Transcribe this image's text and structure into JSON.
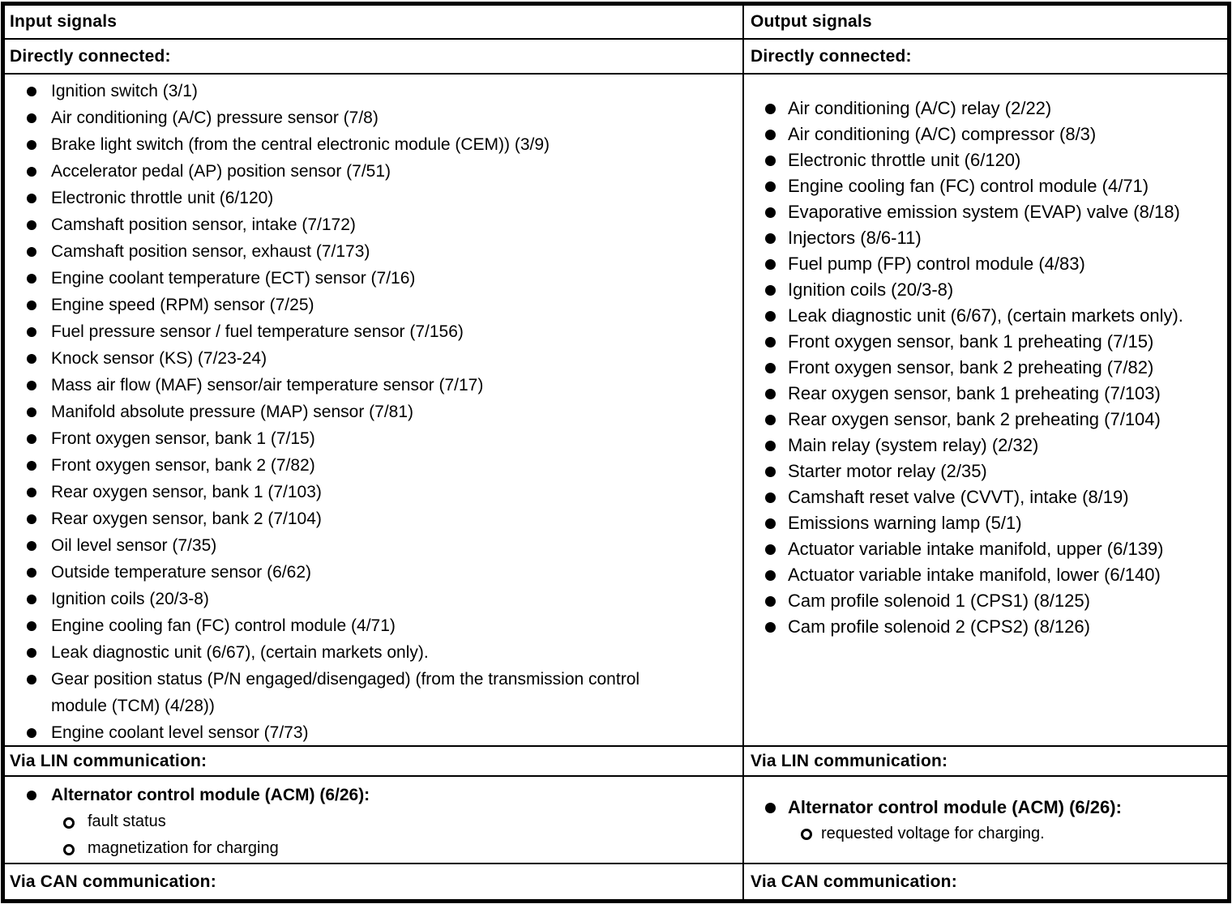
{
  "colors": {
    "border": "#000000",
    "text": "#000000",
    "background": "#ffffff"
  },
  "table": {
    "columns": [
      {
        "id": "input",
        "header": "Input signals",
        "directly_connected_label": "Directly connected:",
        "directly_connected_items": [
          {
            "text": "Ignition switch (3/1)"
          },
          {
            "text": "Air conditioning (A/C) pressure sensor (7/8)"
          },
          {
            "text": "Brake light switch (from the central electronic module (CEM)) (3/9)"
          },
          {
            "text": "Accelerator pedal (AP) position sensor (7/51)"
          },
          {
            "text": "Electronic throttle unit (6/120)"
          },
          {
            "text": "Camshaft position sensor, intake (7/172)"
          },
          {
            "text": "Camshaft position sensor, exhaust (7/173)"
          },
          {
            "text": "Engine coolant temperature (ECT) sensor (7/16)"
          },
          {
            "text": "Engine speed (RPM) sensor (7/25)"
          },
          {
            "text": "Fuel pressure sensor / fuel temperature sensor (7/156)"
          },
          {
            "text": "Knock sensor (KS) (7/23-24)"
          },
          {
            "text": "Mass air flow (MAF) sensor/air temperature sensor (7/17)"
          },
          {
            "text": "Manifold absolute pressure (MAP) sensor (7/81)"
          },
          {
            "text": "Front oxygen sensor, bank 1 (7/15)"
          },
          {
            "text": "Front oxygen sensor, bank 2 (7/82)"
          },
          {
            "text": "Rear oxygen sensor, bank 1 (7/103)"
          },
          {
            "text": "Rear oxygen sensor, bank 2 (7/104)"
          },
          {
            "text": "Oil level sensor (7/35)"
          },
          {
            "text": "Outside temperature sensor (6/62)"
          },
          {
            "text": "Ignition coils (20/3-8)"
          },
          {
            "text": "Engine cooling fan (FC) control module (4/71)"
          },
          {
            "text": "Leak diagnostic unit (6/67), (certain markets only)."
          },
          {
            "text": "Gear position status (P/N engaged/disengaged) (from the transmission control module (TCM) (4/28))"
          },
          {
            "text": "Engine coolant level sensor (7/73)"
          }
        ],
        "via_lin_label": "Via LIN communication:",
        "via_lin_items": [
          {
            "text": "Alternator control module (ACM) (6/26):",
            "bold": true,
            "sub": [
              "fault status",
              "magnetization for charging"
            ]
          }
        ],
        "via_can_label": "Via CAN communication:"
      },
      {
        "id": "output",
        "header": "Output signals",
        "directly_connected_label": "Directly connected:",
        "directly_connected_items": [
          {
            "text": "Air conditioning (A/C) relay (2/22)"
          },
          {
            "text": "Air conditioning (A/C) compressor (8/3)"
          },
          {
            "text": "Electronic throttle unit (6/120)"
          },
          {
            "text": "Engine cooling fan (FC) control module (4/71)"
          },
          {
            "text": "Evaporative emission system (EVAP) valve (8/18)"
          },
          {
            "text": "Injectors (8/6-11)"
          },
          {
            "text": "Fuel pump (FP) control module (4/83)"
          },
          {
            "text": "Ignition coils (20/3-8)"
          },
          {
            "text": "Leak diagnostic unit (6/67), (certain markets only)."
          },
          {
            "text": "Front oxygen sensor, bank 1 preheating (7/15)"
          },
          {
            "text": "Front oxygen sensor, bank 2 preheating (7/82)"
          },
          {
            "text": "Rear oxygen sensor, bank 1 preheating (7/103)"
          },
          {
            "text": "Rear oxygen sensor, bank 2 preheating (7/104)"
          },
          {
            "text": "Main relay (system relay) (2/32)"
          },
          {
            "text": "Starter motor relay (2/35)"
          },
          {
            "text": "Camshaft reset valve (CVVT), intake (8/19)"
          },
          {
            "text": "Emissions warning lamp (5/1)"
          },
          {
            "text": "Actuator variable intake manifold, upper (6/139)"
          },
          {
            "text": "Actuator variable intake manifold, lower (6/140)"
          },
          {
            "text": "Cam profile solenoid 1 (CPS1) (8/125)"
          },
          {
            "text": "Cam profile solenoid 2 (CPS2) (8/126)"
          }
        ],
        "via_lin_label": "Via LIN communication:",
        "via_lin_items": [
          {
            "text": "Alternator control module (ACM) (6/26):",
            "bold": true,
            "sub": [
              "requested voltage for charging."
            ]
          }
        ],
        "via_can_label": "Via CAN communication:"
      }
    ]
  }
}
